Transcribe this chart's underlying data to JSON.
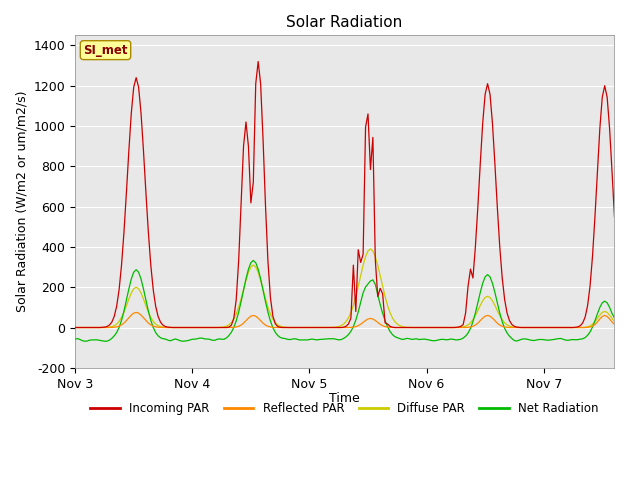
{
  "title": "Solar Radiation",
  "ylabel": "Solar Radiation (W/m2 or um/m2/s)",
  "xlabel": "Time",
  "ylim": [
    -200,
    1450
  ],
  "yticks": [
    -200,
    0,
    200,
    400,
    600,
    800,
    1000,
    1200,
    1400
  ],
  "xtick_labels": [
    "Nov 3",
    "Nov 4",
    "Nov 5",
    "Nov 6",
    "Nov 7"
  ],
  "xtick_positions": [
    0,
    1,
    2,
    3,
    4
  ],
  "xlim": [
    0,
    4.6
  ],
  "bg_color": "#e8e8e8",
  "legend": [
    {
      "label": "Incoming PAR",
      "color": "#cc0000"
    },
    {
      "label": "Reflected PAR",
      "color": "#ff8800"
    },
    {
      "label": "Diffuse PAR",
      "color": "#cccc00"
    },
    {
      "label": "Net Radiation",
      "color": "#00bb00"
    }
  ],
  "station_label": "SI_met",
  "colors": {
    "incoming": "#cc0000",
    "reflected": "#ff8800",
    "diffuse": "#cccc00",
    "net": "#00bb00"
  },
  "grid_color": "#ffffff",
  "title_fontsize": 11,
  "label_fontsize": 9,
  "tick_fontsize": 9
}
